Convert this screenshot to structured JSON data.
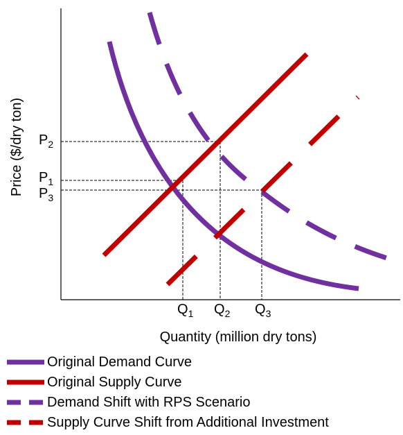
{
  "colors": {
    "demand": "#7030a0",
    "supply": "#c00000",
    "axis": "#000000",
    "guide": "#000000"
  },
  "axes": {
    "x_label": "Quantity (million dry tons)",
    "y_label": "Price ($/dry ton)"
  },
  "price_ticks": [
    {
      "base": "P",
      "sub": "2"
    },
    {
      "base": "P",
      "sub": "1"
    },
    {
      "base": "P",
      "sub": "3"
    }
  ],
  "quantity_ticks": [
    {
      "base": "Q",
      "sub": "1"
    },
    {
      "base": "Q",
      "sub": "2"
    },
    {
      "base": "Q",
      "sub": "3"
    }
  ],
  "legend": [
    {
      "label": "Original Demand Curve",
      "color": "#7030a0",
      "style": "solid"
    },
    {
      "label": "Original Supply Curve",
      "color": "#c00000",
      "style": "solid"
    },
    {
      "label": "Demand Shift with RPS Scenario",
      "color": "#7030a0",
      "style": "dashed"
    },
    {
      "label": "Supply Curve Shift from Additional Investment",
      "color": "#c00000",
      "style": "dashed"
    }
  ]
}
